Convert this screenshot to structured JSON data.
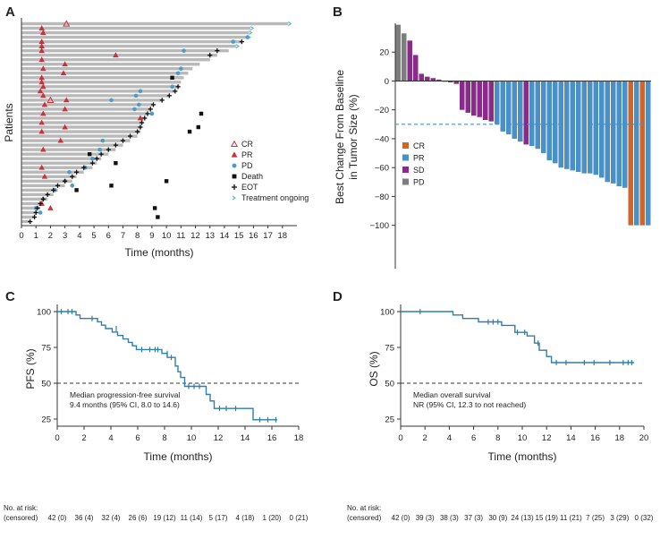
{
  "panels": {
    "A": {
      "letter": "A"
    },
    "B": {
      "letter": "B"
    },
    "C": {
      "letter": "C"
    },
    "D": {
      "letter": "D"
    }
  },
  "colors": {
    "bar_gray": "#b9b9b9",
    "cr": "#c8323c",
    "pr_marker": "#c8323c",
    "pd_marker": "#4b9ccd",
    "death": "#111111",
    "eot": "#111111",
    "ongoing": "#4fb7c8",
    "wf_cr": "#d2642a",
    "wf_pr": "#4a90c4",
    "wf_sd": "#8a2a8a",
    "wf_pd": "#7d7d7d",
    "km_line": "#2f7fa8",
    "dashed": "#333333",
    "threshold": "#4a90c4"
  },
  "chart_data": [
    {
      "id": "A",
      "type": "swimmer",
      "xlabel": "Time (months)",
      "ylabel": "Patients",
      "xlim": [
        0,
        19
      ],
      "xticks": [
        0,
        1,
        2,
        3,
        4,
        5,
        6,
        7,
        8,
        9,
        10,
        11,
        12,
        13,
        14,
        15,
        16,
        17,
        18
      ],
      "legend": [
        {
          "key": "cr",
          "label": "CR"
        },
        {
          "key": "pr",
          "label": "PR"
        },
        {
          "key": "pd",
          "label": "PD"
        },
        {
          "key": "death",
          "label": "Death"
        },
        {
          "key": "eot",
          "label": "EOT"
        },
        {
          "key": "ongoing",
          "label": "Treatment ongoing"
        }
      ],
      "bars": [
        18.4,
        15.8,
        15.7,
        15.6,
        15.2,
        14.8,
        14.3,
        13.5,
        13.0,
        12.3,
        11.8,
        11.5,
        11.2,
        11.0,
        10.9,
        10.6,
        10.2,
        9.7,
        9.1,
        8.9,
        8.7,
        8.5,
        8.4,
        8.3,
        8.2,
        8.0,
        7.5,
        7.0,
        6.5,
        6.0,
        5.5,
        5.2,
        4.9,
        4.3,
        3.8,
        3.5,
        3.0,
        2.5,
        2.2,
        1.8,
        1.5,
        1.3,
        1.1,
        0.9,
        0.6
      ],
      "cr_markers": [
        {
          "row": 0,
          "x": 3.1
        },
        {
          "row": 17,
          "x": 2.0
        }
      ],
      "pr_markers": [
        {
          "row": 1,
          "x": 1.4
        },
        {
          "row": 2,
          "x": 1.5
        },
        {
          "row": 4,
          "x": 1.4
        },
        {
          "row": 5,
          "x": 1.4
        },
        {
          "row": 6,
          "x": 1.4
        },
        {
          "row": 7,
          "x": 6.5
        },
        {
          "row": 8,
          "x": 1.4
        },
        {
          "row": 9,
          "x": 3.0
        },
        {
          "row": 10,
          "x": 1.5
        },
        {
          "row": 11,
          "x": 2.9
        },
        {
          "row": 12,
          "x": 1.4
        },
        {
          "row": 13,
          "x": 1.4
        },
        {
          "row": 14,
          "x": 1.5
        },
        {
          "row": 15,
          "x": 1.3
        },
        {
          "row": 16,
          "x": 1.5
        },
        {
          "row": 17,
          "x": 3.1
        },
        {
          "row": 18,
          "x": 1.6
        },
        {
          "row": 19,
          "x": 3.0
        },
        {
          "row": 20,
          "x": 1.5
        },
        {
          "row": 21,
          "x": 8.2
        },
        {
          "row": 22,
          "x": 1.4
        },
        {
          "row": 23,
          "x": 3.0
        },
        {
          "row": 24,
          "x": 1.4
        },
        {
          "row": 26,
          "x": 2.7
        },
        {
          "row": 28,
          "x": 1.5
        },
        {
          "row": 32,
          "x": 1.4
        },
        {
          "row": 34,
          "x": 1.6
        },
        {
          "row": 40,
          "x": 1.4
        },
        {
          "row": 41,
          "x": 2.0
        }
      ],
      "pd_markers": [
        {
          "row": 3,
          "x": 15.6
        },
        {
          "row": 4,
          "x": 14.6
        },
        {
          "row": 6,
          "x": 11.2
        },
        {
          "row": 10,
          "x": 11.0
        },
        {
          "row": 11,
          "x": 10.8
        },
        {
          "row": 14,
          "x": 10.4
        },
        {
          "row": 15,
          "x": 8.2
        },
        {
          "row": 16,
          "x": 7.9
        },
        {
          "row": 17,
          "x": 6.2
        },
        {
          "row": 18,
          "x": 8.1
        },
        {
          "row": 19,
          "x": 7.8
        },
        {
          "row": 20,
          "x": 9.0
        },
        {
          "row": 26,
          "x": 5.6
        },
        {
          "row": 28,
          "x": 5.4
        },
        {
          "row": 30,
          "x": 4.9
        },
        {
          "row": 32,
          "x": 4.4
        },
        {
          "row": 33,
          "x": 3.3
        },
        {
          "row": 35,
          "x": 3.0
        },
        {
          "row": 36,
          "x": 3.5
        },
        {
          "row": 37,
          "x": 2.3
        },
        {
          "row": 39,
          "x": 1.5
        },
        {
          "row": 41,
          "x": 1.0
        },
        {
          "row": 42,
          "x": 1.3
        }
      ],
      "death_markers": [
        {
          "row": 12,
          "x": 10.4
        },
        {
          "row": 20,
          "x": 12.4
        },
        {
          "row": 23,
          "x": 12.2
        },
        {
          "row": 24,
          "x": 11.6
        },
        {
          "row": 29,
          "x": 4.7
        },
        {
          "row": 31,
          "x": 6.5
        },
        {
          "row": 35,
          "x": 10.0
        },
        {
          "row": 36,
          "x": 6.2
        },
        {
          "row": 37,
          "x": 3.8
        },
        {
          "row": 41,
          "x": 9.2
        },
        {
          "row": 43,
          "x": 9.4
        }
      ],
      "eot_markers": [
        {
          "row": 4,
          "x": 15.2
        },
        {
          "row": 6,
          "x": 13.5
        },
        {
          "row": 7,
          "x": 13.0
        },
        {
          "row": 14,
          "x": 10.8
        },
        {
          "row": 15,
          "x": 10.6
        },
        {
          "row": 16,
          "x": 10.2
        },
        {
          "row": 17,
          "x": 9.7
        },
        {
          "row": 18,
          "x": 9.1
        },
        {
          "row": 19,
          "x": 8.9
        },
        {
          "row": 20,
          "x": 8.7
        },
        {
          "row": 21,
          "x": 8.5
        },
        {
          "row": 22,
          "x": 8.3
        },
        {
          "row": 23,
          "x": 8.2
        },
        {
          "row": 24,
          "x": 8.0
        },
        {
          "row": 25,
          "x": 7.5
        },
        {
          "row": 26,
          "x": 7.0
        },
        {
          "row": 27,
          "x": 6.5
        },
        {
          "row": 28,
          "x": 6.0
        },
        {
          "row": 29,
          "x": 5.5
        },
        {
          "row": 30,
          "x": 5.2
        },
        {
          "row": 31,
          "x": 4.9
        },
        {
          "row": 32,
          "x": 4.3
        },
        {
          "row": 33,
          "x": 3.8
        },
        {
          "row": 34,
          "x": 3.5
        },
        {
          "row": 35,
          "x": 3.0
        },
        {
          "row": 36,
          "x": 2.5
        },
        {
          "row": 37,
          "x": 2.2
        },
        {
          "row": 38,
          "x": 1.8
        },
        {
          "row": 39,
          "x": 1.5
        },
        {
          "row": 40,
          "x": 1.3
        },
        {
          "row": 41,
          "x": 1.1
        },
        {
          "row": 42,
          "x": 1.0
        },
        {
          "row": 43,
          "x": 0.9
        },
        {
          "row": 44,
          "x": 0.6
        }
      ],
      "ongoing_markers": [
        {
          "row": 0,
          "x": 18.4
        },
        {
          "row": 1,
          "x": 15.8
        },
        {
          "row": 2,
          "x": 15.7
        },
        {
          "row": 3,
          "x": 15.6
        },
        {
          "row": 5,
          "x": 14.8
        }
      ]
    },
    {
      "id": "B",
      "type": "bar",
      "title": "",
      "ylabel_lines": [
        "Best Change From Baseline",
        "in Tumor Size (%)"
      ],
      "ylim": [
        -130,
        40
      ],
      "yticks": [
        20,
        0,
        -20,
        -40,
        -60,
        -80,
        -100
      ],
      "threshold": -30,
      "legend": [
        {
          "key": "wf_cr",
          "label": "CR"
        },
        {
          "key": "wf_pr",
          "label": "PR"
        },
        {
          "key": "wf_sd",
          "label": "SD"
        },
        {
          "key": "wf_pd",
          "label": "PD"
        }
      ],
      "values": [
        39,
        33,
        28,
        18,
        5,
        3,
        2,
        1,
        0,
        -1,
        -2,
        -20,
        -22,
        -24,
        -25,
        -27,
        -28,
        -30,
        -35,
        -37,
        -40,
        -42,
        -44,
        -45,
        -47,
        -50,
        -55,
        -57,
        -60,
        -61,
        -62,
        -63,
        -64,
        -64,
        -65,
        -67,
        -70,
        -71,
        -73,
        -74,
        -100,
        -100,
        -100,
        -100
      ],
      "categories": [
        "PD",
        "PD",
        "SD",
        "SD",
        "SD",
        "SD",
        "SD",
        "SD",
        "SD",
        "SD",
        "SD",
        "SD",
        "SD",
        "SD",
        "SD",
        "SD",
        "SD",
        "PR",
        "PR",
        "PR",
        "PR",
        "PR",
        "SD",
        "PR",
        "PR",
        "PR",
        "PR",
        "PR",
        "PR",
        "PR",
        "PR",
        "PR",
        "PR",
        "PR",
        "PR",
        "PR",
        "PR",
        "PR",
        "PR",
        "PR",
        "CR",
        "PR",
        "CR",
        "PR"
      ]
    },
    {
      "id": "C",
      "type": "line",
      "xlabel": "Time (months)",
      "ylabel": "PFS (%)",
      "xlim": [
        0,
        18
      ],
      "ylim": [
        20,
        100
      ],
      "xticks": [
        0,
        2,
        4,
        6,
        8,
        10,
        12,
        14,
        16,
        18
      ],
      "yticks": [
        25,
        50,
        75,
        100
      ],
      "reference_line": 50,
      "annotation_lines": [
        "Median progression-free survival",
        "9.4 months (95% CI, 8.0 to 14.6)"
      ],
      "steps": [
        [
          0,
          100
        ],
        [
          1.4,
          100
        ],
        [
          1.4,
          97.6
        ],
        [
          1.7,
          97.6
        ],
        [
          1.7,
          95.2
        ],
        [
          3.0,
          95.2
        ],
        [
          3.0,
          92.9
        ],
        [
          3.3,
          92.9
        ],
        [
          3.3,
          90.5
        ],
        [
          3.6,
          90.5
        ],
        [
          3.6,
          88.1
        ],
        [
          4.1,
          88.1
        ],
        [
          4.1,
          85.7
        ],
        [
          4.5,
          85.7
        ],
        [
          4.5,
          83.3
        ],
        [
          4.9,
          83.3
        ],
        [
          4.9,
          80.9
        ],
        [
          5.3,
          80.9
        ],
        [
          5.3,
          78.5
        ],
        [
          5.6,
          78.5
        ],
        [
          5.6,
          76.1
        ],
        [
          5.9,
          76.1
        ],
        [
          5.9,
          73.5
        ],
        [
          7.8,
          73.5
        ],
        [
          7.8,
          70.8
        ],
        [
          8.2,
          70.8
        ],
        [
          8.2,
          68.0
        ],
        [
          8.8,
          68.0
        ],
        [
          8.8,
          62.0
        ],
        [
          9.0,
          62.0
        ],
        [
          9.0,
          58.0
        ],
        [
          9.2,
          58.0
        ],
        [
          9.2,
          54.0
        ],
        [
          9.5,
          54.0
        ],
        [
          9.5,
          47.8
        ],
        [
          11.1,
          47.8
        ],
        [
          11.1,
          42.2
        ],
        [
          11.4,
          42.2
        ],
        [
          11.4,
          37.6
        ],
        [
          11.7,
          37.6
        ],
        [
          11.7,
          32.4
        ],
        [
          14.6,
          32.4
        ],
        [
          14.6,
          24.5
        ],
        [
          16.4,
          24.5
        ]
      ],
      "censors": [
        [
          0.3,
          100
        ],
        [
          0.8,
          100
        ],
        [
          1.1,
          100
        ],
        [
          2.6,
          95.2
        ],
        [
          4.4,
          88.1
        ],
        [
          6.3,
          73.5
        ],
        [
          6.9,
          73.5
        ],
        [
          7.3,
          73.5
        ],
        [
          7.5,
          73.5
        ],
        [
          8.2,
          70.8
        ],
        [
          8.5,
          68.0
        ],
        [
          9.8,
          47.8
        ],
        [
          10.2,
          47.8
        ],
        [
          10.6,
          47.8
        ],
        [
          12.1,
          32.4
        ],
        [
          12.6,
          32.4
        ],
        [
          13.3,
          32.4
        ],
        [
          15.1,
          24.5
        ],
        [
          15.7,
          24.5
        ],
        [
          16.3,
          24.5
        ]
      ],
      "risk_label_lines": [
        "No. at risk:",
        "(censored)"
      ],
      "risk_times": [
        0,
        2,
        4,
        6,
        8,
        10,
        12,
        14,
        16,
        18
      ],
      "risk_values": [
        "42 (0)",
        "36 (4)",
        "32 (4)",
        "26 (6)",
        "19 (12)",
        "11 (14)",
        "5 (17)",
        "4 (18)",
        "1 (20)",
        "0 (21)"
      ]
    },
    {
      "id": "D",
      "type": "line",
      "xlabel": "Time (months)",
      "ylabel": "OS (%)",
      "xlim": [
        0,
        20
      ],
      "ylim": [
        20,
        100
      ],
      "xticks": [
        0,
        2,
        4,
        6,
        8,
        10,
        12,
        14,
        16,
        18,
        20
      ],
      "yticks": [
        25,
        50,
        75,
        100
      ],
      "reference_line": 50,
      "annotation_lines": [
        "Median overall survival",
        "NR (95% CI, 12.3 to not reached)"
      ],
      "steps": [
        [
          0,
          100
        ],
        [
          4.3,
          100
        ],
        [
          4.3,
          97.6
        ],
        [
          5.1,
          97.6
        ],
        [
          5.1,
          95.2
        ],
        [
          6.4,
          95.2
        ],
        [
          6.4,
          92.8
        ],
        [
          8.3,
          92.8
        ],
        [
          8.3,
          90.4
        ],
        [
          9.4,
          90.4
        ],
        [
          9.4,
          85.5
        ],
        [
          10.4,
          85.5
        ],
        [
          10.4,
          83.0
        ],
        [
          11.0,
          83.0
        ],
        [
          11.0,
          78.0
        ],
        [
          11.4,
          78.0
        ],
        [
          11.4,
          73.0
        ],
        [
          12.0,
          73.0
        ],
        [
          12.0,
          68.6
        ],
        [
          12.4,
          68.6
        ],
        [
          12.4,
          64.4
        ],
        [
          19.2,
          64.4
        ]
      ],
      "censors": [
        [
          1.6,
          100
        ],
        [
          7.2,
          92.8
        ],
        [
          7.6,
          92.8
        ],
        [
          8.0,
          92.8
        ],
        [
          9.6,
          85.5
        ],
        [
          10.2,
          85.5
        ],
        [
          11.3,
          78.0
        ],
        [
          12.8,
          64.4
        ],
        [
          13.6,
          64.4
        ],
        [
          15.1,
          64.4
        ],
        [
          15.9,
          64.4
        ],
        [
          17.2,
          64.4
        ],
        [
          18.3,
          64.4
        ],
        [
          18.7,
          64.4
        ],
        [
          19.0,
          64.4
        ]
      ],
      "risk_label_lines": [
        "No. at risk:",
        "(censored)"
      ],
      "risk_times": [
        0,
        2,
        4,
        6,
        8,
        10,
        12,
        14,
        16,
        18,
        20
      ],
      "risk_values": [
        "42 (0)",
        "39 (3)",
        "38 (3)",
        "37 (3)",
        "30 (9)",
        "24 (13)",
        "15 (19)",
        "11 (21)",
        "7 (25)",
        "3 (29)",
        "0 (32)"
      ]
    }
  ]
}
